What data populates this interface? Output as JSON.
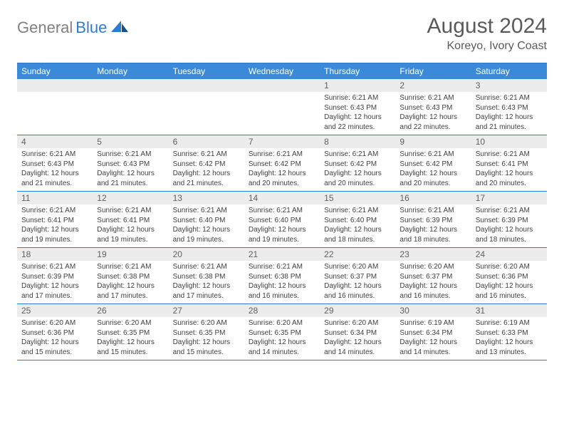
{
  "logo": {
    "text1": "General",
    "text2": "Blue"
  },
  "title": "August 2024",
  "subtitle": "Koreyo, Ivory Coast",
  "colors": {
    "header_bg": "#3b8ad9",
    "border": "#2e7cd1",
    "daynum_bg": "#ececec",
    "text": "#404040",
    "title_color": "#5a5a5a"
  },
  "weekdays": [
    "Sunday",
    "Monday",
    "Tuesday",
    "Wednesday",
    "Thursday",
    "Friday",
    "Saturday"
  ],
  "weeks": [
    [
      {
        "num": "",
        "sunrise": "",
        "sunset": "",
        "daylight": ""
      },
      {
        "num": "",
        "sunrise": "",
        "sunset": "",
        "daylight": ""
      },
      {
        "num": "",
        "sunrise": "",
        "sunset": "",
        "daylight": ""
      },
      {
        "num": "",
        "sunrise": "",
        "sunset": "",
        "daylight": ""
      },
      {
        "num": "1",
        "sunrise": "Sunrise: 6:21 AM",
        "sunset": "Sunset: 6:43 PM",
        "daylight": "Daylight: 12 hours and 22 minutes."
      },
      {
        "num": "2",
        "sunrise": "Sunrise: 6:21 AM",
        "sunset": "Sunset: 6:43 PM",
        "daylight": "Daylight: 12 hours and 22 minutes."
      },
      {
        "num": "3",
        "sunrise": "Sunrise: 6:21 AM",
        "sunset": "Sunset: 6:43 PM",
        "daylight": "Daylight: 12 hours and 21 minutes."
      }
    ],
    [
      {
        "num": "4",
        "sunrise": "Sunrise: 6:21 AM",
        "sunset": "Sunset: 6:43 PM",
        "daylight": "Daylight: 12 hours and 21 minutes."
      },
      {
        "num": "5",
        "sunrise": "Sunrise: 6:21 AM",
        "sunset": "Sunset: 6:43 PM",
        "daylight": "Daylight: 12 hours and 21 minutes."
      },
      {
        "num": "6",
        "sunrise": "Sunrise: 6:21 AM",
        "sunset": "Sunset: 6:42 PM",
        "daylight": "Daylight: 12 hours and 21 minutes."
      },
      {
        "num": "7",
        "sunrise": "Sunrise: 6:21 AM",
        "sunset": "Sunset: 6:42 PM",
        "daylight": "Daylight: 12 hours and 20 minutes."
      },
      {
        "num": "8",
        "sunrise": "Sunrise: 6:21 AM",
        "sunset": "Sunset: 6:42 PM",
        "daylight": "Daylight: 12 hours and 20 minutes."
      },
      {
        "num": "9",
        "sunrise": "Sunrise: 6:21 AM",
        "sunset": "Sunset: 6:42 PM",
        "daylight": "Daylight: 12 hours and 20 minutes."
      },
      {
        "num": "10",
        "sunrise": "Sunrise: 6:21 AM",
        "sunset": "Sunset: 6:41 PM",
        "daylight": "Daylight: 12 hours and 20 minutes."
      }
    ],
    [
      {
        "num": "11",
        "sunrise": "Sunrise: 6:21 AM",
        "sunset": "Sunset: 6:41 PM",
        "daylight": "Daylight: 12 hours and 19 minutes."
      },
      {
        "num": "12",
        "sunrise": "Sunrise: 6:21 AM",
        "sunset": "Sunset: 6:41 PM",
        "daylight": "Daylight: 12 hours and 19 minutes."
      },
      {
        "num": "13",
        "sunrise": "Sunrise: 6:21 AM",
        "sunset": "Sunset: 6:40 PM",
        "daylight": "Daylight: 12 hours and 19 minutes."
      },
      {
        "num": "14",
        "sunrise": "Sunrise: 6:21 AM",
        "sunset": "Sunset: 6:40 PM",
        "daylight": "Daylight: 12 hours and 19 minutes."
      },
      {
        "num": "15",
        "sunrise": "Sunrise: 6:21 AM",
        "sunset": "Sunset: 6:40 PM",
        "daylight": "Daylight: 12 hours and 18 minutes."
      },
      {
        "num": "16",
        "sunrise": "Sunrise: 6:21 AM",
        "sunset": "Sunset: 6:39 PM",
        "daylight": "Daylight: 12 hours and 18 minutes."
      },
      {
        "num": "17",
        "sunrise": "Sunrise: 6:21 AM",
        "sunset": "Sunset: 6:39 PM",
        "daylight": "Daylight: 12 hours and 18 minutes."
      }
    ],
    [
      {
        "num": "18",
        "sunrise": "Sunrise: 6:21 AM",
        "sunset": "Sunset: 6:39 PM",
        "daylight": "Daylight: 12 hours and 17 minutes."
      },
      {
        "num": "19",
        "sunrise": "Sunrise: 6:21 AM",
        "sunset": "Sunset: 6:38 PM",
        "daylight": "Daylight: 12 hours and 17 minutes."
      },
      {
        "num": "20",
        "sunrise": "Sunrise: 6:21 AM",
        "sunset": "Sunset: 6:38 PM",
        "daylight": "Daylight: 12 hours and 17 minutes."
      },
      {
        "num": "21",
        "sunrise": "Sunrise: 6:21 AM",
        "sunset": "Sunset: 6:38 PM",
        "daylight": "Daylight: 12 hours and 16 minutes."
      },
      {
        "num": "22",
        "sunrise": "Sunrise: 6:20 AM",
        "sunset": "Sunset: 6:37 PM",
        "daylight": "Daylight: 12 hours and 16 minutes."
      },
      {
        "num": "23",
        "sunrise": "Sunrise: 6:20 AM",
        "sunset": "Sunset: 6:37 PM",
        "daylight": "Daylight: 12 hours and 16 minutes."
      },
      {
        "num": "24",
        "sunrise": "Sunrise: 6:20 AM",
        "sunset": "Sunset: 6:36 PM",
        "daylight": "Daylight: 12 hours and 16 minutes."
      }
    ],
    [
      {
        "num": "25",
        "sunrise": "Sunrise: 6:20 AM",
        "sunset": "Sunset: 6:36 PM",
        "daylight": "Daylight: 12 hours and 15 minutes."
      },
      {
        "num": "26",
        "sunrise": "Sunrise: 6:20 AM",
        "sunset": "Sunset: 6:35 PM",
        "daylight": "Daylight: 12 hours and 15 minutes."
      },
      {
        "num": "27",
        "sunrise": "Sunrise: 6:20 AM",
        "sunset": "Sunset: 6:35 PM",
        "daylight": "Daylight: 12 hours and 15 minutes."
      },
      {
        "num": "28",
        "sunrise": "Sunrise: 6:20 AM",
        "sunset": "Sunset: 6:35 PM",
        "daylight": "Daylight: 12 hours and 14 minutes."
      },
      {
        "num": "29",
        "sunrise": "Sunrise: 6:20 AM",
        "sunset": "Sunset: 6:34 PM",
        "daylight": "Daylight: 12 hours and 14 minutes."
      },
      {
        "num": "30",
        "sunrise": "Sunrise: 6:19 AM",
        "sunset": "Sunset: 6:34 PM",
        "daylight": "Daylight: 12 hours and 14 minutes."
      },
      {
        "num": "31",
        "sunrise": "Sunrise: 6:19 AM",
        "sunset": "Sunset: 6:33 PM",
        "daylight": "Daylight: 12 hours and 13 minutes."
      }
    ]
  ]
}
